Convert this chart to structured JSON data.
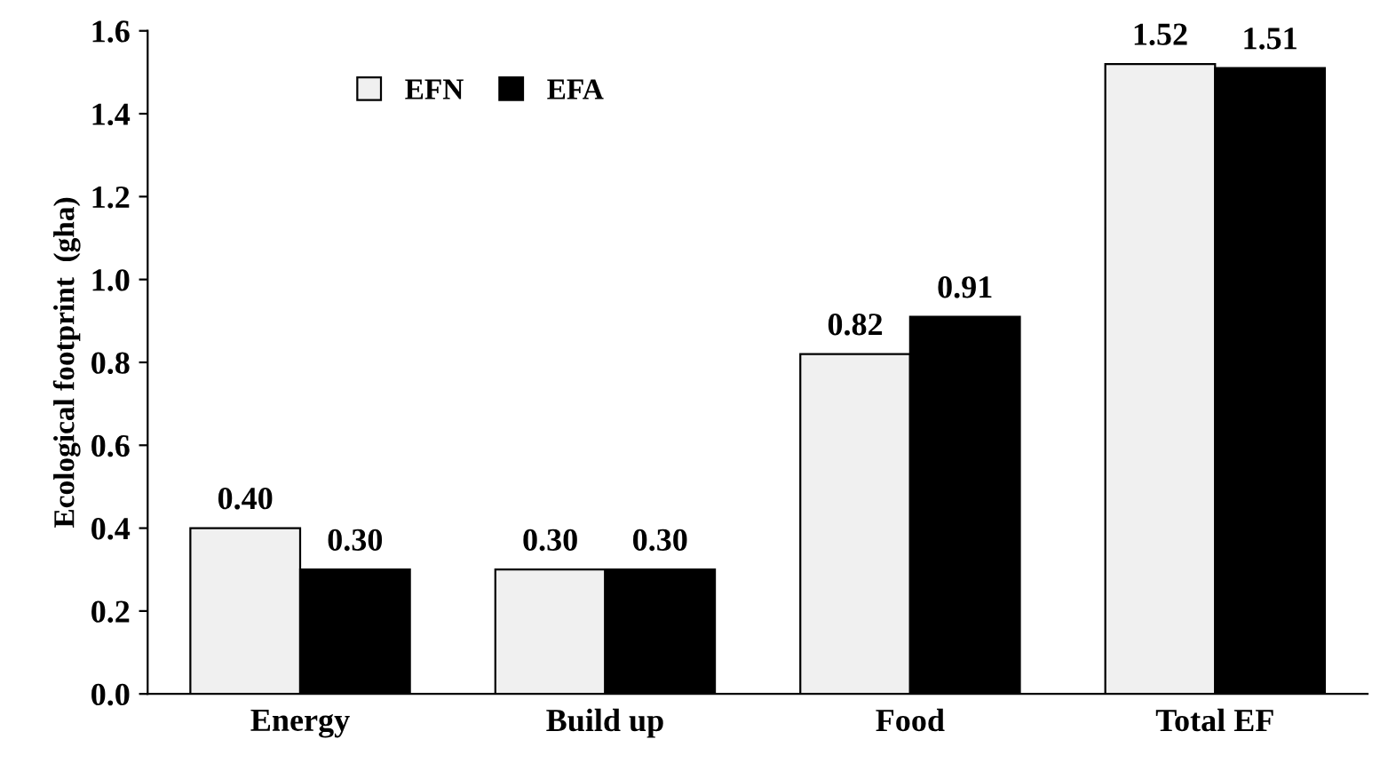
{
  "chart_data": {
    "type": "bar",
    "ylabel": "Ecological footprint  (gha)",
    "categories": [
      "Energy",
      "Build up",
      "Food",
      "Total EF"
    ],
    "series": [
      {
        "name": "EFN",
        "color": "#f0f0f0",
        "values": [
          0.4,
          0.3,
          0.82,
          1.52
        ],
        "value_labels": [
          "0.40",
          "0.30",
          "0.82",
          "1.52"
        ]
      },
      {
        "name": "EFA",
        "color": "#000000",
        "values": [
          0.3,
          0.3,
          0.91,
          1.51
        ],
        "value_labels": [
          "0.30",
          "0.30",
          "0.91",
          "1.51"
        ]
      }
    ],
    "ylim": [
      0,
      1.6
    ],
    "yticks": [
      {
        "value": 0,
        "label": "0.0"
      },
      {
        "value": 0.2,
        "label": "0.2"
      },
      {
        "value": 0.4,
        "label": "0.4"
      },
      {
        "value": 0.6,
        "label": "0.6"
      },
      {
        "value": 0.8,
        "label": "0.8"
      },
      {
        "value": 1.0,
        "label": "1.0"
      },
      {
        "value": 1.2,
        "label": "1.2"
      },
      {
        "value": 1.4,
        "label": "1.4"
      },
      {
        "value": 1.6,
        "label": "1.6"
      }
    ],
    "grid": false,
    "legend": "top left"
  }
}
